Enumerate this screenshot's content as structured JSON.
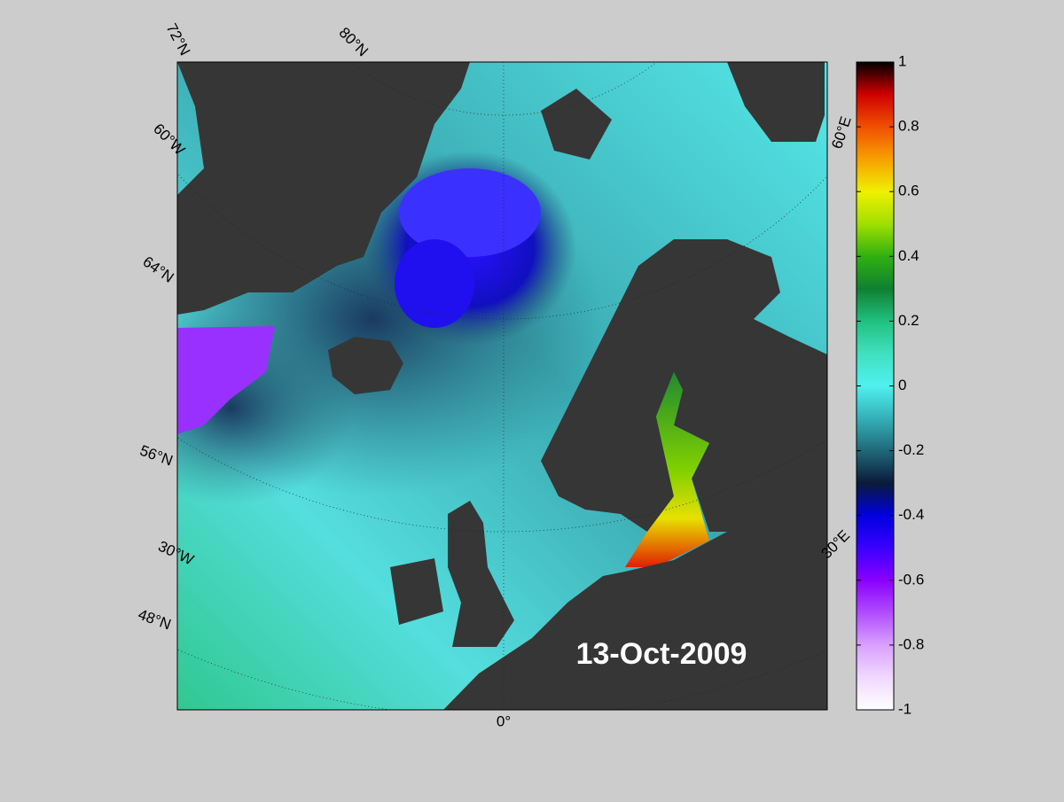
{
  "map": {
    "date_label": "13-Oct-2009",
    "graticule_labels": [
      "72°N",
      "80°N",
      "60°W",
      "64°N",
      "56°N",
      "30°W",
      "48°N",
      "0°",
      "30°E",
      "60°E"
    ]
  },
  "colorbar": {
    "lim": [
      -1,
      1
    ],
    "ticks": [
      1,
      0.8,
      0.6,
      0.4,
      0.2,
      0,
      -0.2,
      -0.4,
      -0.6,
      -0.8,
      -1
    ],
    "colors": [
      "#ffffff",
      "#f0d8ff",
      "#d9a0ff",
      "#b04cff",
      "#8a00ff",
      "#3a00ff",
      "#0000e0",
      "#0a1a3a",
      "#206878",
      "#34b0b8",
      "#50f0f0",
      "#40e0c0",
      "#20c080",
      "#108030",
      "#30b010",
      "#a0e000",
      "#f0f000",
      "#f8a000",
      "#f05000",
      "#d00000",
      "#000000"
    ]
  }
}
